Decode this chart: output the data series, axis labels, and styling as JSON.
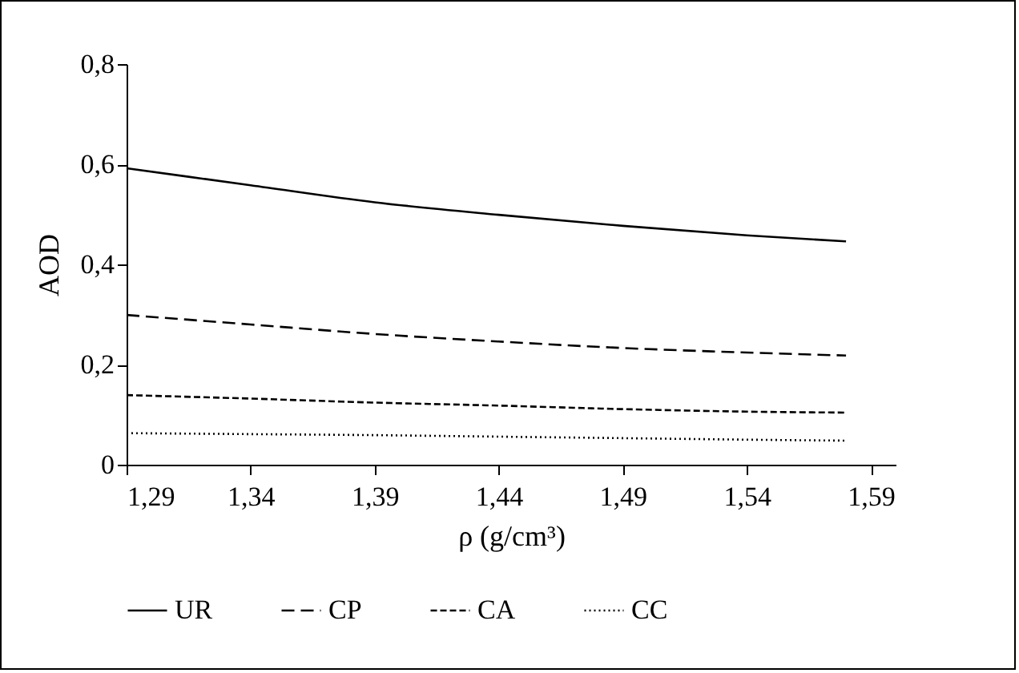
{
  "chart_data": {
    "type": "line",
    "xlabel": "ρ (g/cm³)",
    "ylabel": "AOD",
    "x": [
      1.29,
      1.34,
      1.39,
      1.44,
      1.49,
      1.54,
      1.58
    ],
    "series": [
      {
        "name": "UR",
        "color": "#000000",
        "line_style": "solid",
        "values": [
          0.592,
          0.558,
          0.524,
          0.499,
          0.477,
          0.458,
          0.446
        ]
      },
      {
        "name": "CP",
        "color": "#000000",
        "line_style": "dashed",
        "values": [
          0.299,
          0.28,
          0.261,
          0.246,
          0.233,
          0.224,
          0.218
        ]
      },
      {
        "name": "CA",
        "color": "#000000",
        "line_style": "short-dashed",
        "values": [
          0.139,
          0.132,
          0.124,
          0.118,
          0.111,
          0.106,
          0.104
        ]
      },
      {
        "name": "CC",
        "color": "#000000",
        "line_style": "dotted",
        "values": [
          0.063,
          0.061,
          0.059,
          0.056,
          0.053,
          0.05,
          0.048
        ]
      }
    ],
    "xlim": [
      1.29,
      1.6
    ],
    "xticks": [
      {
        "value": 1.29,
        "label": "1,29"
      },
      {
        "value": 1.34,
        "label": "1,34"
      },
      {
        "value": 1.39,
        "label": "1,39"
      },
      {
        "value": 1.44,
        "label": "1,44"
      },
      {
        "value": 1.49,
        "label": "1,49"
      },
      {
        "value": 1.54,
        "label": "1,54"
      },
      {
        "value": 1.59,
        "label": "1,59"
      }
    ],
    "ylim": [
      0,
      0.8
    ],
    "yticks": [
      0,
      {
        "value": 0.2,
        "label": "0,2"
      },
      {
        "value": 0.4,
        "label": "0,4"
      },
      {
        "value": 0.6,
        "label": "0,6"
      },
      {
        "value": 0.8,
        "label": "0,8"
      }
    ],
    "grid": false,
    "legend": "bottom",
    "marker": "none"
  }
}
